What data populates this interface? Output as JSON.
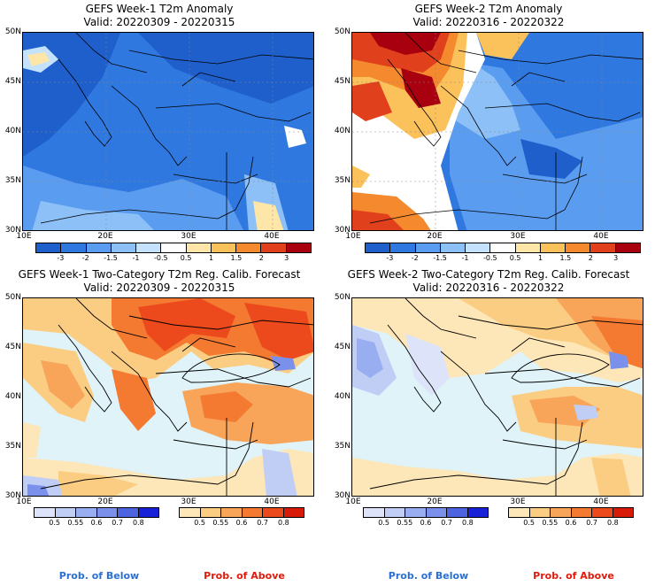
{
  "panels": [
    {
      "title": "GEFS Week-1 T2m Anomaly",
      "valid": "Valid: 20220309 - 20220315"
    },
    {
      "title": "GEFS Week-2 T2m Anomaly",
      "valid": "Valid: 20220316 - 20220322"
    },
    {
      "title": "GEFS Week-1 Two-Category T2m Reg. Calib. Forecast",
      "valid": "Valid: 20220309 - 20220315"
    },
    {
      "title": "GEFS Week-2 Two-Category T2m Reg. Calib. Forecast",
      "valid": "Valid: 20220316 - 20220322"
    }
  ],
  "lat_labels": [
    "50N",
    "45N",
    "40N",
    "35N",
    "30N"
  ],
  "lon_labels": [
    "10E",
    "20E",
    "30E",
    "40E"
  ],
  "anomaly_colorbar": {
    "labels": [
      "-3",
      "-2",
      "-1.5",
      "-1",
      "-0.5",
      "0.5",
      "1",
      "1.5",
      "2",
      "3"
    ],
    "colors": [
      "#1e5fcc",
      "#2f78e0",
      "#5a9cf0",
      "#8cc0f7",
      "#c4e2fb",
      "#ffffff",
      "#fde6a8",
      "#fbc15a",
      "#f5892e",
      "#e0401c",
      "#a8000f"
    ]
  },
  "below_colorbar": {
    "labels": [
      "0.5",
      "0.55",
      "0.6",
      "0.7",
      "0.8"
    ],
    "colors": [
      "#dde4fa",
      "#c0cdf5",
      "#99aef0",
      "#7a90eb",
      "#4d63e0",
      "#1820d8"
    ]
  },
  "above_colorbar": {
    "labels": [
      "0.5",
      "0.55",
      "0.6",
      "0.7",
      "0.8"
    ],
    "colors": [
      "#fde6b8",
      "#fbcd83",
      "#f8a55a",
      "#f47a32",
      "#ec4a1c",
      "#d81a08"
    ]
  },
  "prob_below_label": "Prob. of Below",
  "prob_above_label": "Prob. of Above",
  "colors": {
    "below_text": "#2a6fd6",
    "above_text": "#e01a0c",
    "sea": "#dff3f8"
  }
}
